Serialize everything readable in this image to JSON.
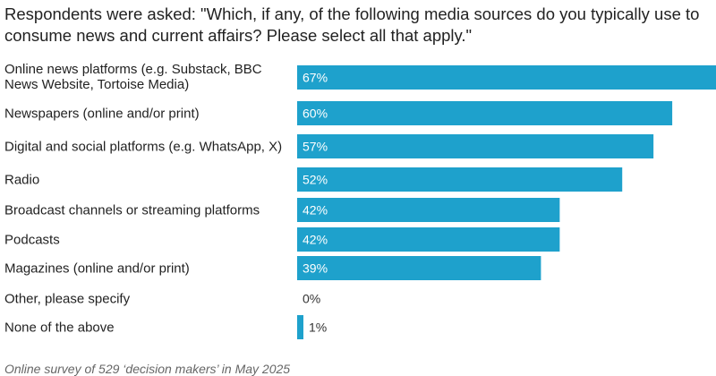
{
  "chart_data": {
    "type": "bar",
    "orientation": "horizontal",
    "title": "Respondents were asked: \"Which, if any, of the following media sources do you typically use to consume news and current affairs? Please select all that apply.\"",
    "categories": [
      "Online news platforms (e.g. Substack, BBC News Website, Tortoise Media)",
      "Newspapers (online and/or print)",
      "Digital and social platforms (e.g. WhatsApp, X)",
      "Radio",
      "Broadcast channels or streaming platforms",
      "Podcasts",
      "Magazines (online and/or print)",
      "Other, please specify",
      "None of the above"
    ],
    "values": [
      67,
      60,
      57,
      52,
      42,
      42,
      39,
      0,
      1
    ],
    "value_labels": [
      "67%",
      "60%",
      "57%",
      "52%",
      "42%",
      "42%",
      "39%",
      "0%",
      "1%"
    ],
    "value_unit": "%",
    "xlim": [
      0,
      67
    ],
    "grid": false,
    "legend": "none",
    "footnote": "Online survey of 529 ‘decision makers’ in May 2025"
  },
  "colors": {
    "bar": "#1ea1cc",
    "label_inside": "#ffffff",
    "label_outside": "#333333"
  }
}
